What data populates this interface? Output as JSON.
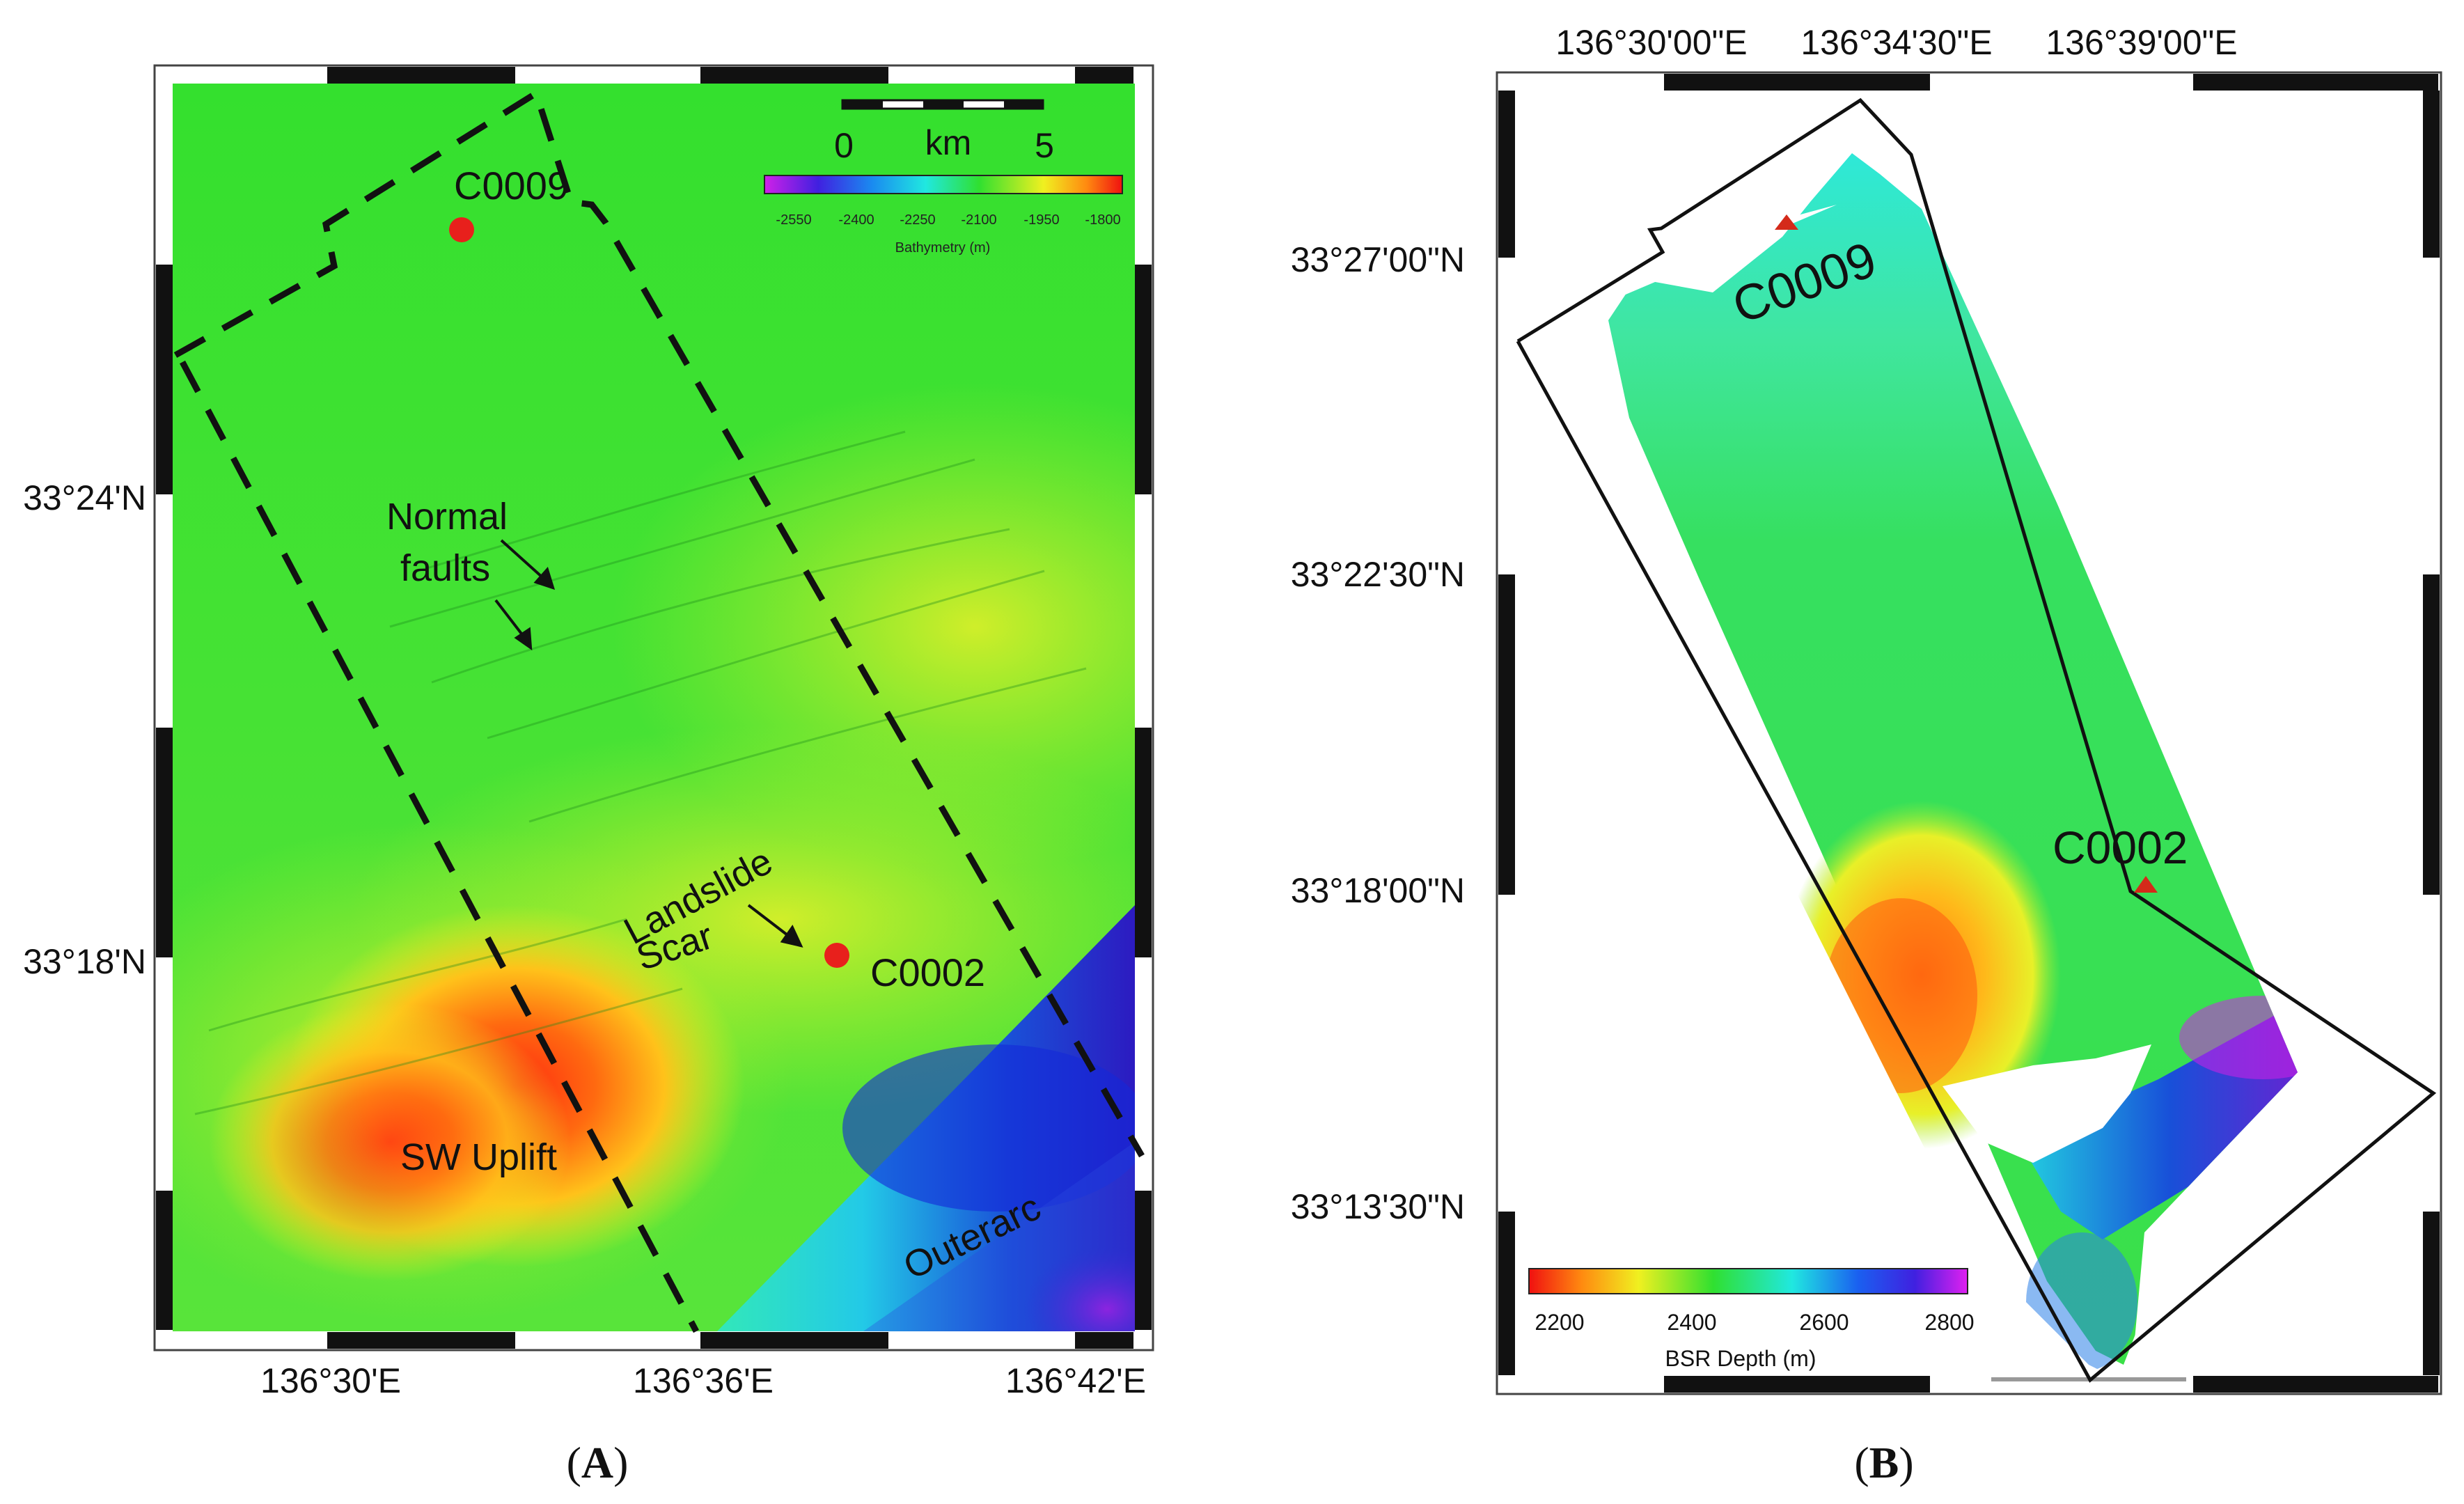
{
  "panel_a": {
    "label_open": "(",
    "label_letter": "A",
    "label_close": ")",
    "lon_ticks": [
      "136°30'E",
      "136°36'E",
      "136°42'E"
    ],
    "lat_ticks": [
      "33°24'N",
      "33°18'N"
    ],
    "sites": [
      "C0009",
      "C0002"
    ],
    "annotations": {
      "normal_faults_1": "Normal",
      "normal_faults_2": "faults",
      "landslide_1": "Landslide",
      "landslide_2": "Scar",
      "sw_uplift": "SW Uplift",
      "outerarc": "Outerarc"
    },
    "scale_bar": {
      "min": "0",
      "unit": "km",
      "max": "5"
    },
    "colorbar": {
      "ticks": [
        "-2550",
        "-2400",
        "-2250",
        "-2100",
        "-1950",
        "-1800"
      ],
      "label": "Bathymetry (m)"
    }
  },
  "panel_b": {
    "label_open": "(",
    "label_letter": "B",
    "label_close": ")",
    "lon_ticks": [
      "136°30'00\"E",
      "136°34'30\"E",
      "136°39'00\"E"
    ],
    "lat_ticks": [
      "33°27'00\"N",
      "33°22'30\"N",
      "33°18'00\"N",
      "33°13'30\"N"
    ],
    "sites": [
      "C0009",
      "C0002"
    ],
    "colorbar": {
      "ticks": [
        "2200",
        "2400",
        "2600",
        "2800"
      ],
      "label": "BSR Depth (m)"
    }
  },
  "colors": {
    "site_marker_a": "#e8201c",
    "site_marker_b": "#d42a1a",
    "map_green": "#32e032"
  }
}
